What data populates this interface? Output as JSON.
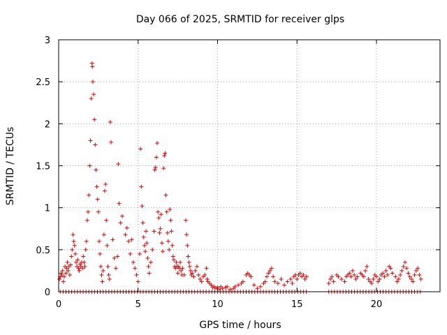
{
  "chart_data": {
    "type": "scatter",
    "title": "Day 066 of 2025, SRMTID for receiver glps",
    "xlabel": "GPS time / hours",
    "ylabel": "SRMTID / TECUs",
    "xlim": [
      0,
      24
    ],
    "ylim": [
      0,
      3
    ],
    "xticks": [
      0,
      5,
      10,
      15,
      20
    ],
    "yticks": [
      0,
      0.5,
      1,
      1.5,
      2,
      2.5,
      3
    ],
    "grid": true,
    "marker": "plus",
    "marker_color": "#dd0000",
    "series": [
      {
        "name": "SRMTID",
        "points": [
          [
            0.05,
            0.15
          ],
          [
            0.1,
            0.18
          ],
          [
            0.15,
            0.22
          ],
          [
            0.2,
            0.2
          ],
          [
            0.25,
            0.25
          ],
          [
            0.3,
            0.12
          ],
          [
            0.35,
            0.18
          ],
          [
            0.4,
            0.3
          ],
          [
            0.45,
            0.22
          ],
          [
            0.5,
            0.28
          ],
          [
            0.55,
            0.35
          ],
          [
            0.6,
            0.25
          ],
          [
            0.65,
            0.3
          ],
          [
            0.7,
            0.2
          ],
          [
            0.75,
            0.32
          ],
          [
            0.8,
            0.42
          ],
          [
            0.85,
            0.5
          ],
          [
            0.9,
            0.68
          ],
          [
            0.95,
            0.6
          ],
          [
            1.0,
            0.55
          ],
          [
            1.05,
            0.45
          ],
          [
            1.1,
            0.35
          ],
          [
            1.15,
            0.3
          ],
          [
            1.2,
            0.38
          ],
          [
            1.25,
            0.28
          ],
          [
            1.3,
            0.25
          ],
          [
            1.35,
            0.33
          ],
          [
            1.4,
            0.3
          ],
          [
            1.45,
            0.35
          ],
          [
            1.5,
            0.28
          ],
          [
            1.55,
            0.42
          ],
          [
            1.6,
            0.35
          ],
          [
            1.65,
            0.3
          ],
          [
            1.7,
            0.5
          ],
          [
            1.75,
            0.6
          ],
          [
            1.8,
            0.85
          ],
          [
            1.85,
            0.95
          ],
          [
            1.9,
            1.15
          ],
          [
            1.95,
            1.5
          ],
          [
            2.0,
            1.8
          ],
          [
            2.05,
            2.3
          ],
          [
            2.1,
            2.72
          ],
          [
            2.12,
            2.68
          ],
          [
            2.15,
            2.5
          ],
          [
            2.2,
            2.35
          ],
          [
            2.25,
            2.05
          ],
          [
            2.3,
            1.75
          ],
          [
            2.35,
            1.45
          ],
          [
            2.4,
            1.25
          ],
          [
            2.45,
            1.1
          ],
          [
            2.5,
            0.95
          ],
          [
            2.55,
            0.6
          ],
          [
            2.6,
            0.45
          ],
          [
            2.65,
            0.3
          ],
          [
            2.7,
            0.2
          ],
          [
            2.75,
            0.12
          ],
          [
            2.8,
            0.25
          ],
          [
            2.85,
            0.68
          ],
          [
            2.9,
            1.2
          ],
          [
            2.95,
            1.28
          ],
          [
            3.0,
            0.85
          ],
          [
            3.05,
            0.55
          ],
          [
            3.1,
            0.3
          ],
          [
            3.15,
            0.2
          ],
          [
            3.2,
            0.15
          ],
          [
            3.25,
            2.02
          ],
          [
            3.3,
            1.78
          ],
          [
            3.4,
            0.62
          ],
          [
            3.5,
            0.4
          ],
          [
            3.6,
            0.28
          ],
          [
            3.7,
            0.42
          ],
          [
            3.75,
            1.52
          ],
          [
            3.8,
            1.05
          ],
          [
            3.9,
            0.82
          ],
          [
            4.0,
            0.9
          ],
          [
            4.2,
            0.68
          ],
          [
            4.3,
            0.76
          ],
          [
            4.4,
            0.6
          ],
          [
            4.5,
            0.45
          ],
          [
            4.6,
            0.62
          ],
          [
            4.7,
            0.35
          ],
          [
            4.8,
            0.28
          ],
          [
            4.9,
            0.2
          ],
          [
            5.0,
            0.12
          ],
          [
            5.1,
            0.45
          ],
          [
            5.15,
            1.7
          ],
          [
            5.2,
            1.25
          ],
          [
            5.25,
            1.02
          ],
          [
            5.3,
            0.82
          ],
          [
            5.35,
            0.65
          ],
          [
            5.4,
            0.55
          ],
          [
            5.45,
            0.48
          ],
          [
            5.5,
            0.72
          ],
          [
            5.55,
            0.58
          ],
          [
            5.6,
            0.4
          ],
          [
            5.65,
            0.3
          ],
          [
            5.7,
            0.22
          ],
          [
            5.8,
            0.35
          ],
          [
            5.9,
            0.5
          ],
          [
            6.0,
            0.72
          ],
          [
            6.05,
            1.45
          ],
          [
            6.1,
            1.48
          ],
          [
            6.15,
            1.6
          ],
          [
            6.2,
            1.77
          ],
          [
            6.25,
            0.95
          ],
          [
            6.3,
            0.88
          ],
          [
            6.35,
            0.7
          ],
          [
            6.4,
            0.75
          ],
          [
            6.45,
            0.92
          ],
          [
            6.5,
            0.58
          ],
          [
            6.55,
            0.48
          ],
          [
            6.6,
            1.47
          ],
          [
            6.65,
            1.62
          ],
          [
            6.7,
            1.65
          ],
          [
            6.75,
            1.15
          ],
          [
            6.8,
            0.95
          ],
          [
            6.85,
            0.7
          ],
          [
            6.9,
            0.6
          ],
          [
            6.95,
            0.5
          ],
          [
            7.0,
            0.98
          ],
          [
            7.05,
            0.85
          ],
          [
            7.1,
            0.72
          ],
          [
            7.15,
            0.55
          ],
          [
            7.2,
            0.42
          ],
          [
            7.25,
            0.38
          ],
          [
            7.3,
            0.3
          ],
          [
            7.35,
            0.28
          ],
          [
            7.4,
            0.35
          ],
          [
            7.45,
            0.3
          ],
          [
            7.5,
            0.22
          ],
          [
            7.55,
            0.3
          ],
          [
            7.6,
            0.28
          ],
          [
            7.65,
            0.35
          ],
          [
            7.7,
            0.25
          ],
          [
            7.75,
            0.2
          ],
          [
            7.8,
            0.28
          ],
          [
            7.9,
            0.2
          ],
          [
            8.0,
            0.85
          ],
          [
            8.05,
            0.68
          ],
          [
            8.1,
            0.55
          ],
          [
            8.15,
            0.42
          ],
          [
            8.2,
            0.35
          ],
          [
            8.25,
            0.3
          ],
          [
            8.3,
            0.25
          ],
          [
            8.35,
            0.2
          ],
          [
            8.4,
            0.22
          ],
          [
            8.5,
            0.18
          ],
          [
            8.6,
            0.25
          ],
          [
            8.7,
            0.3
          ],
          [
            8.8,
            0.2
          ],
          [
            8.9,
            0.15
          ],
          [
            9.0,
            0.12
          ],
          [
            9.1,
            0.18
          ],
          [
            9.2,
            0.2
          ],
          [
            9.3,
            0.28
          ],
          [
            9.35,
            0.15
          ],
          [
            9.4,
            0.12
          ],
          [
            9.5,
            0.1
          ],
          [
            9.6,
            0.08
          ],
          [
            9.7,
            0.05
          ],
          [
            9.8,
            0.06
          ],
          [
            9.9,
            0.04
          ],
          [
            10.0,
            0.05
          ],
          [
            10.1,
            0.03
          ],
          [
            10.2,
            0.06
          ],
          [
            10.3,
            0.04
          ],
          [
            10.5,
            0.05
          ],
          [
            10.6,
            0.06
          ],
          [
            10.8,
            0.03
          ],
          [
            11.0,
            0.04
          ],
          [
            11.1,
            0.06
          ],
          [
            11.3,
            0.08
          ],
          [
            11.5,
            0.1
          ],
          [
            11.6,
            0.12
          ],
          [
            11.8,
            0.2
          ],
          [
            11.9,
            0.22
          ],
          [
            12.0,
            0.2
          ],
          [
            12.1,
            0.18
          ],
          [
            12.3,
            0.08
          ],
          [
            12.5,
            0.04
          ],
          [
            12.7,
            0.06
          ],
          [
            12.9,
            0.1
          ],
          [
            13.0,
            0.12
          ],
          [
            13.1,
            0.18
          ],
          [
            13.2,
            0.22
          ],
          [
            13.3,
            0.25
          ],
          [
            13.4,
            0.28
          ],
          [
            13.5,
            0.18
          ],
          [
            13.6,
            0.12
          ],
          [
            13.8,
            0.1
          ],
          [
            14.0,
            0.15
          ],
          [
            14.2,
            0.08
          ],
          [
            14.4,
            0.12
          ],
          [
            14.6,
            0.15
          ],
          [
            14.7,
            0.1
          ],
          [
            14.8,
            0.18
          ],
          [
            14.9,
            0.2
          ],
          [
            15.0,
            0.15
          ],
          [
            15.1,
            0.2
          ],
          [
            15.2,
            0.22
          ],
          [
            15.3,
            0.18
          ],
          [
            15.4,
            0.2
          ],
          [
            15.5,
            0.15
          ],
          [
            15.6,
            0.18
          ],
          [
            17.0,
            0.1
          ],
          [
            17.1,
            0.15
          ],
          [
            17.2,
            0.18
          ],
          [
            17.3,
            0.12
          ],
          [
            17.5,
            0.2
          ],
          [
            17.6,
            0.18
          ],
          [
            17.8,
            0.15
          ],
          [
            18.0,
            0.12
          ],
          [
            18.1,
            0.18
          ],
          [
            18.2,
            0.2
          ],
          [
            18.3,
            0.22
          ],
          [
            18.4,
            0.18
          ],
          [
            18.5,
            0.25
          ],
          [
            18.6,
            0.2
          ],
          [
            18.7,
            0.15
          ],
          [
            18.8,
            0.18
          ],
          [
            19.0,
            0.22
          ],
          [
            19.1,
            0.2
          ],
          [
            19.2,
            0.18
          ],
          [
            19.3,
            0.25
          ],
          [
            19.4,
            0.3
          ],
          [
            19.5,
            0.15
          ],
          [
            19.6,
            0.12
          ],
          [
            19.7,
            0.1
          ],
          [
            19.8,
            0.15
          ],
          [
            19.9,
            0.2
          ],
          [
            20.0,
            0.18
          ],
          [
            20.1,
            0.12
          ],
          [
            20.2,
            0.15
          ],
          [
            20.3,
            0.2
          ],
          [
            20.4,
            0.22
          ],
          [
            20.5,
            0.18
          ],
          [
            20.6,
            0.25
          ],
          [
            20.7,
            0.2
          ],
          [
            20.8,
            0.3
          ],
          [
            20.9,
            0.28
          ],
          [
            21.0,
            0.22
          ],
          [
            21.2,
            0.18
          ],
          [
            21.3,
            0.12
          ],
          [
            21.4,
            0.15
          ],
          [
            21.5,
            0.2
          ],
          [
            21.6,
            0.25
          ],
          [
            21.7,
            0.3
          ],
          [
            21.8,
            0.35
          ],
          [
            21.9,
            0.28
          ],
          [
            22.0,
            0.22
          ],
          [
            22.1,
            0.18
          ],
          [
            22.2,
            0.15
          ],
          [
            22.3,
            0.12
          ],
          [
            22.4,
            0.2
          ],
          [
            22.5,
            0.25
          ],
          [
            22.6,
            0.28
          ],
          [
            22.7,
            0.2
          ],
          [
            22.8,
            0.15
          ]
        ],
        "baseline_ranges": [
          [
            0.1,
            15.6
          ],
          [
            17.0,
            22.8
          ]
        ],
        "baseline_step": 0.18
      }
    ]
  }
}
